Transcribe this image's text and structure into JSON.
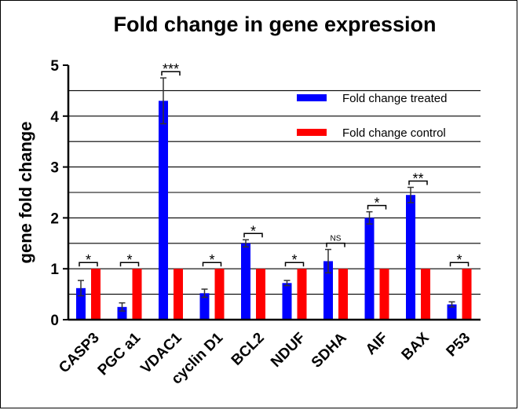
{
  "chart_data": {
    "type": "bar",
    "title": "Fold change in gene expression",
    "ylabel": "gene fold change",
    "xlabel": "",
    "ylim": [
      0,
      5
    ],
    "yticks": [
      0,
      1,
      2,
      3,
      4,
      5
    ],
    "gridlines": [
      0.5,
      1,
      1.5,
      2,
      2.5,
      3,
      3.5,
      4,
      4.5
    ],
    "legend_position": "top-right",
    "categories": [
      "CASP3",
      "PGC a1",
      "VDAC1",
      "cyclin D1",
      "BCL2",
      "NDUF",
      "SDHA",
      "AIF",
      "BAX",
      "P53"
    ],
    "series": [
      {
        "name": "Fold change treated",
        "color": "#0000ff",
        "values": [
          0.62,
          0.25,
          4.3,
          0.52,
          1.5,
          0.72,
          1.15,
          2.0,
          2.45,
          0.3
        ],
        "errors": [
          0.15,
          0.08,
          0.45,
          0.08,
          0.07,
          0.05,
          0.23,
          0.12,
          0.15,
          0.05
        ]
      },
      {
        "name": "Fold change control",
        "color": "#ff0000",
        "values": [
          1,
          1,
          1,
          1,
          1,
          1,
          1,
          1,
          1,
          1
        ],
        "errors": [
          0,
          0,
          0,
          0,
          0,
          0,
          0,
          0,
          0,
          0
        ]
      }
    ],
    "significance": [
      "*",
      "*",
      "***",
      "*",
      "*",
      "*",
      "NS",
      "*",
      "**",
      "*"
    ]
  }
}
